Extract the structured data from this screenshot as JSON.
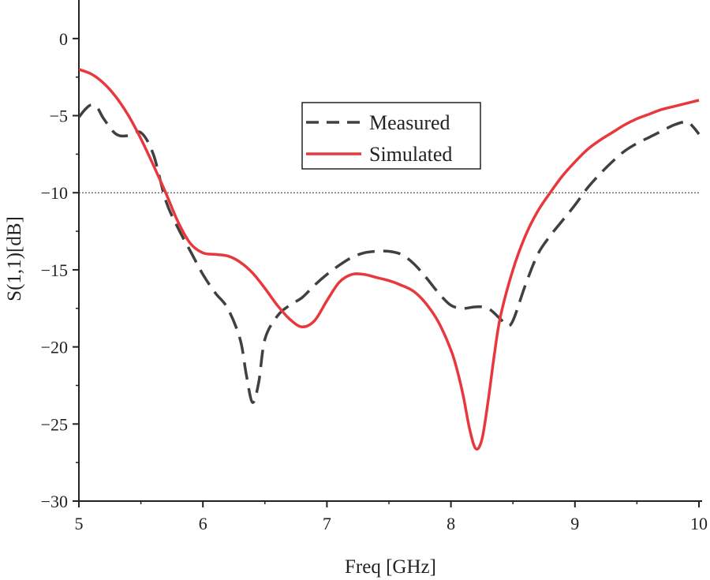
{
  "chart_data": {
    "type": "line",
    "title": "",
    "xlabel": "Freq [GHz]",
    "ylabel": "S(1,1)[dB]",
    "xlim": [
      5,
      10
    ],
    "ylim": [
      -30,
      2.5
    ],
    "x_ticks": [
      5,
      6,
      7,
      8,
      9,
      10
    ],
    "y_ticks": [
      0,
      -5,
      -10,
      -15,
      -20,
      -25,
      -30
    ],
    "x_tick_labels": [
      "5",
      "6",
      "7",
      "8",
      "9",
      "10"
    ],
    "y_tick_labels": [
      "0",
      "−5",
      "−10",
      "−15",
      "−20",
      "−25",
      "−30"
    ],
    "reference_line": {
      "y": -10,
      "style": "dotted"
    },
    "legend_position": "upper-center",
    "grid": false,
    "series": [
      {
        "name": "Measured",
        "style": "dashed",
        "color": "#404040",
        "x": [
          5.0,
          5.05,
          5.1,
          5.15,
          5.2,
          5.3,
          5.4,
          5.5,
          5.6,
          5.7,
          5.8,
          5.9,
          6.0,
          6.1,
          6.2,
          6.3,
          6.35,
          6.4,
          6.45,
          6.5,
          6.6,
          6.7,
          6.8,
          6.9,
          7.0,
          7.1,
          7.2,
          7.3,
          7.4,
          7.5,
          7.6,
          7.7,
          7.8,
          7.9,
          8.0,
          8.1,
          8.2,
          8.3,
          8.4,
          8.45,
          8.5,
          8.6,
          8.7,
          8.8,
          8.9,
          9.0,
          9.1,
          9.2,
          9.3,
          9.4,
          9.5,
          9.6,
          9.7,
          9.8,
          9.9,
          9.95,
          10.0
        ],
        "values": [
          -5.1,
          -4.6,
          -4.3,
          -4.5,
          -5.2,
          -6.2,
          -6.3,
          -6.1,
          -7.5,
          -10.5,
          -12.3,
          -13.8,
          -15.3,
          -16.5,
          -17.5,
          -19.5,
          -21.8,
          -23.6,
          -22.3,
          -19.5,
          -18.0,
          -17.3,
          -16.8,
          -16.0,
          -15.3,
          -14.7,
          -14.2,
          -13.9,
          -13.8,
          -13.8,
          -14.0,
          -14.6,
          -15.5,
          -16.5,
          -17.3,
          -17.5,
          -17.4,
          -17.5,
          -18.2,
          -18.6,
          -18.3,
          -16.0,
          -14.0,
          -12.8,
          -11.8,
          -10.8,
          -9.7,
          -8.8,
          -8.0,
          -7.3,
          -6.8,
          -6.4,
          -6.0,
          -5.6,
          -5.4,
          -5.7,
          -6.2
        ]
      },
      {
        "name": "Simulated",
        "style": "solid",
        "color": "#e8383d",
        "x": [
          5.0,
          5.1,
          5.2,
          5.3,
          5.4,
          5.5,
          5.6,
          5.7,
          5.8,
          5.9,
          6.0,
          6.1,
          6.2,
          6.3,
          6.4,
          6.5,
          6.6,
          6.7,
          6.8,
          6.9,
          7.0,
          7.1,
          7.2,
          7.3,
          7.4,
          7.5,
          7.6,
          7.7,
          7.8,
          7.9,
          8.0,
          8.05,
          8.1,
          8.15,
          8.2,
          8.25,
          8.3,
          8.35,
          8.4,
          8.5,
          8.6,
          8.7,
          8.8,
          8.9,
          9.0,
          9.1,
          9.2,
          9.3,
          9.4,
          9.5,
          9.6,
          9.7,
          9.8,
          9.9,
          10.0
        ],
        "values": [
          -2.0,
          -2.3,
          -2.9,
          -3.8,
          -5.0,
          -6.5,
          -8.2,
          -10.0,
          -11.9,
          -13.3,
          -13.9,
          -14.0,
          -14.1,
          -14.5,
          -15.2,
          -16.2,
          -17.3,
          -18.2,
          -18.7,
          -18.3,
          -17.0,
          -15.8,
          -15.3,
          -15.3,
          -15.5,
          -15.7,
          -16.0,
          -16.4,
          -17.2,
          -18.4,
          -20.2,
          -21.5,
          -23.2,
          -25.3,
          -26.6,
          -26.0,
          -23.5,
          -20.5,
          -18.0,
          -15.0,
          -12.8,
          -11.2,
          -10.0,
          -8.9,
          -8.0,
          -7.2,
          -6.6,
          -6.1,
          -5.6,
          -5.2,
          -4.9,
          -4.6,
          -4.4,
          -4.2,
          -4.0
        ]
      }
    ]
  }
}
